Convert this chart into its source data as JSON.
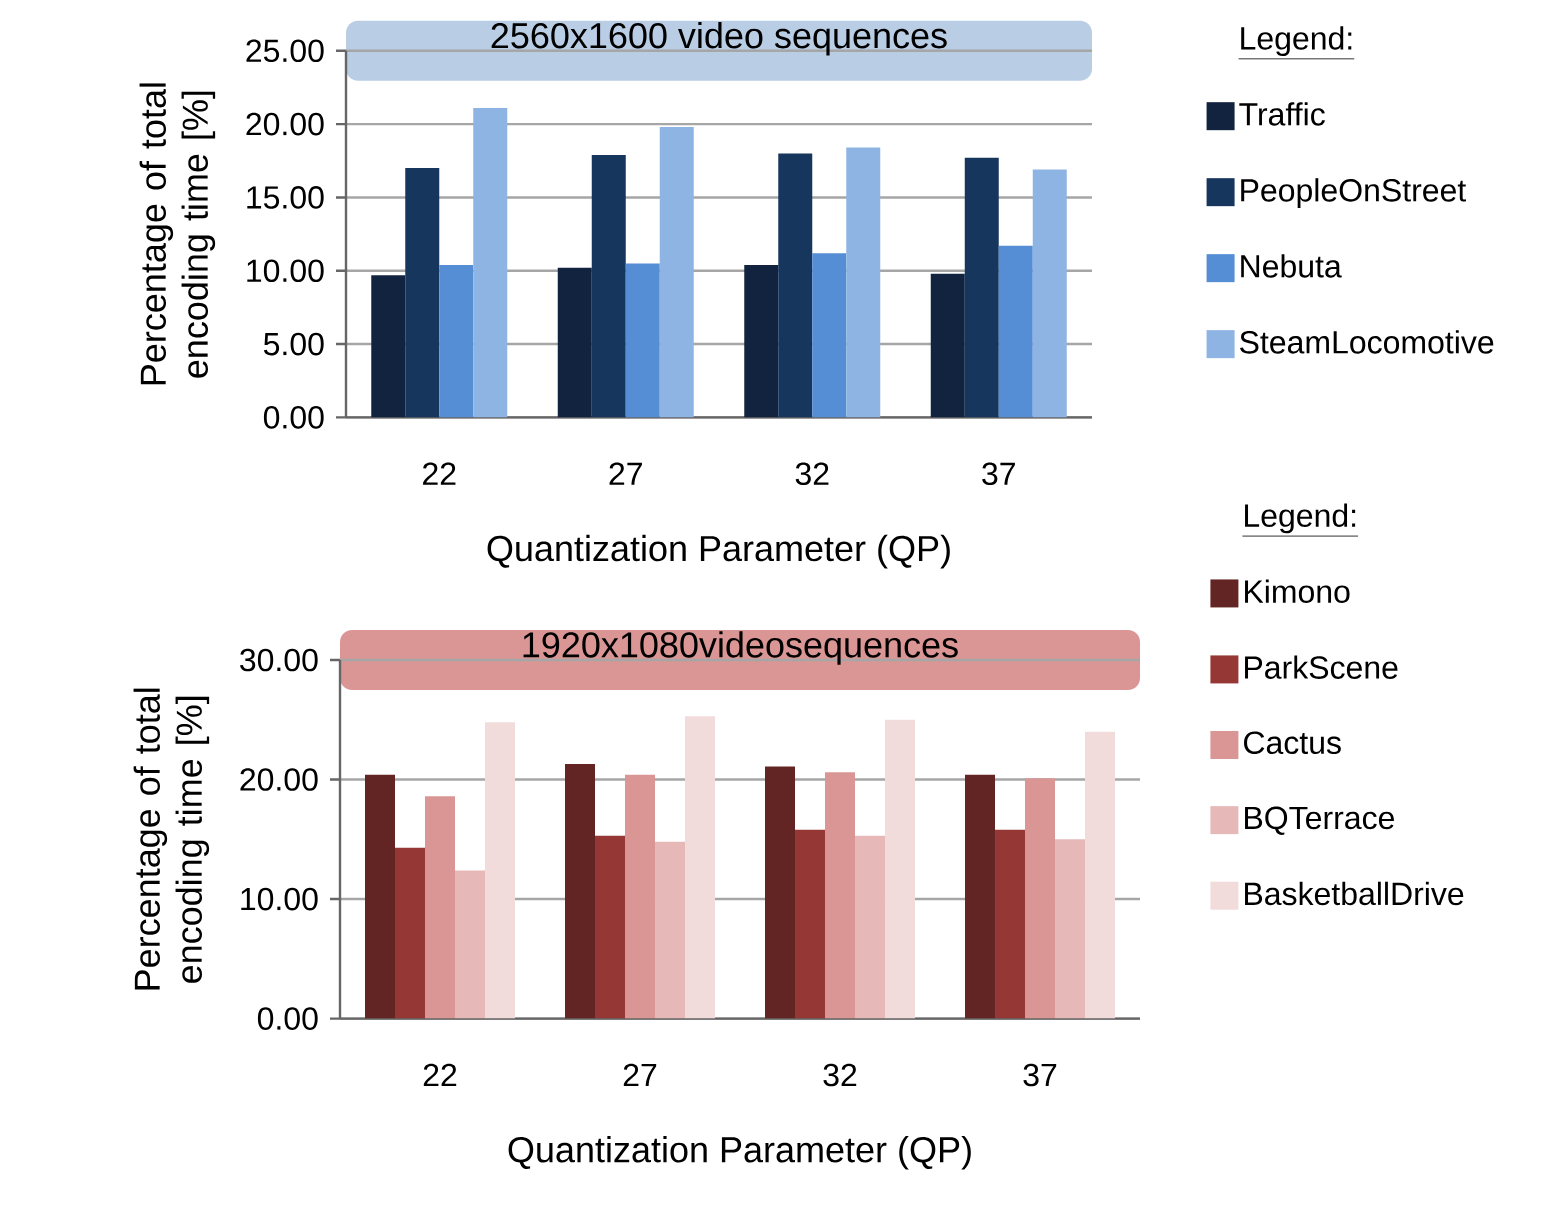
{
  "chart_data": [
    {
      "type": "bar",
      "title": "2560x1600  video sequences",
      "xlabel": "Quantization  Parameter (QP)",
      "ylabel": "Percentage of total encoding time [%]",
      "categories": [
        "22",
        "27",
        "32",
        "37"
      ],
      "series": [
        {
          "name": "Traffic",
          "color": "#12233f",
          "values": [
            9.7,
            10.2,
            10.4,
            9.8
          ]
        },
        {
          "name": "PeopleOnStreet",
          "color": "#17365d",
          "values": [
            17.0,
            17.9,
            18.0,
            17.7
          ]
        },
        {
          "name": "Nebuta",
          "color": "#558ed5",
          "values": [
            10.4,
            10.5,
            11.2,
            11.7
          ]
        },
        {
          "name": "SteamLocomotive",
          "color": "#8eb4e3",
          "values": [
            21.1,
            19.8,
            18.4,
            16.9
          ]
        }
      ],
      "ylim": [
        0,
        25
      ],
      "yticks": [
        {
          "value": 0,
          "label": "0.00"
        },
        {
          "value": 5,
          "label": "5.00"
        },
        {
          "value": 10,
          "label": "10.00"
        },
        {
          "value": 15,
          "label": "15.00"
        },
        {
          "value": 20,
          "label": "20.00"
        },
        {
          "value": 25,
          "label": "25.00"
        }
      ],
      "grid": "y",
      "legend": "right",
      "legend_title": "Legend:"
    },
    {
      "type": "bar",
      "title": "1920x1080videosequences",
      "xlabel": "Quantization  Parameter (QP)",
      "ylabel": "Percentage of total encoding time [%]",
      "categories": [
        "22",
        "27",
        "32",
        "37"
      ],
      "series": [
        {
          "name": "Kimono",
          "color": "#632523",
          "values": [
            20.4,
            21.3,
            21.1,
            20.4
          ]
        },
        {
          "name": "ParkScene",
          "color": "#953735",
          "values": [
            14.3,
            15.3,
            15.8,
            15.8
          ]
        },
        {
          "name": "Cactus",
          "color": "#d99694",
          "values": [
            18.6,
            20.4,
            20.6,
            20.1
          ]
        },
        {
          "name": "BQTerrace",
          "color": "#e6b9b8",
          "values": [
            12.4,
            14.8,
            15.3,
            15.0
          ]
        },
        {
          "name": "BasketballDrive",
          "color": "#f2dcdb",
          "values": [
            24.8,
            25.3,
            25.0,
            24.0
          ]
        }
      ],
      "ylim": [
        0,
        30
      ],
      "yticks": [
        {
          "value": 0,
          "label": "0.00"
        },
        {
          "value": 10,
          "label": "10.00"
        },
        {
          "value": 20,
          "label": "20.00"
        },
        {
          "value": 30,
          "label": "30.00"
        }
      ],
      "grid": "y",
      "legend": "right",
      "legend_title": "Legend:"
    }
  ]
}
